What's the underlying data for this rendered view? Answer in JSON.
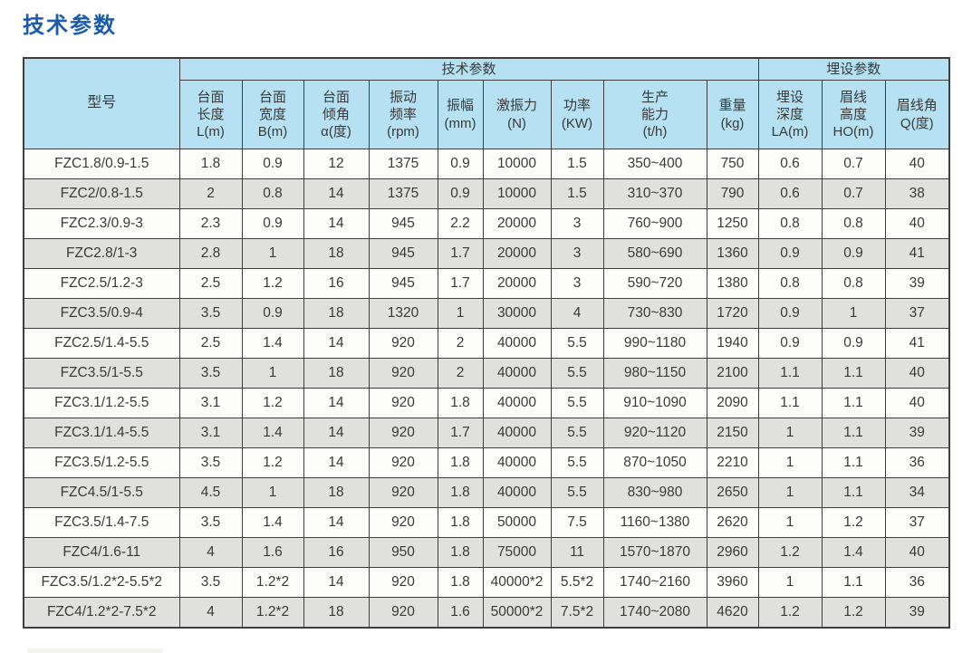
{
  "page_title": "技术参数",
  "colors": {
    "title_blue": "#1d5ca9",
    "header_blue": "#b5e1f2",
    "row_white": "#fdfdfb",
    "row_alt_gray": "#e0e0de",
    "border": "#3e3e3e",
    "text": "#3a3a3a"
  },
  "table": {
    "headers": {
      "model": "型号",
      "group_tech": "技术参数",
      "group_install": "埋设参数",
      "columns": [
        "台面\n长度\nL(m)",
        "台面\n宽度\nB(m)",
        "台面\n倾角\nα(度)",
        "振动\n频率\n(rpm)",
        "振幅\n(mm)",
        "激振力\n(N)",
        "功率\n(KW)",
        "生产\n能力\n(t/h)",
        "重量\n(kg)",
        "埋设\n深度\nLA(m)",
        "眉线\n高度\nHO(m)",
        "眉线角\nQ(度)"
      ]
    },
    "rows": [
      [
        "FZC1.8/0.9-1.5",
        "1.8",
        "0.9",
        "12",
        "1375",
        "0.9",
        "10000",
        "1.5",
        "350~400",
        "750",
        "0.6",
        "0.7",
        "40"
      ],
      [
        "FZC2/0.8-1.5",
        "2",
        "0.8",
        "14",
        "1375",
        "0.9",
        "10000",
        "1.5",
        "310~370",
        "790",
        "0.6",
        "0.7",
        "38"
      ],
      [
        "FZC2.3/0.9-3",
        "2.3",
        "0.9",
        "14",
        "945",
        "2.2",
        "20000",
        "3",
        "760~900",
        "1250",
        "0.8",
        "0.8",
        "40"
      ],
      [
        "FZC2.8/1-3",
        "2.8",
        "1",
        "18",
        "945",
        "1.7",
        "20000",
        "3",
        "580~690",
        "1360",
        "0.9",
        "0.9",
        "41"
      ],
      [
        "FZC2.5/1.2-3",
        "2.5",
        "1.2",
        "16",
        "945",
        "1.7",
        "20000",
        "3",
        "590~720",
        "1380",
        "0.8",
        "0.8",
        "39"
      ],
      [
        "FZC3.5/0.9-4",
        "3.5",
        "0.9",
        "18",
        "1320",
        "1",
        "30000",
        "4",
        "730~830",
        "1720",
        "0.9",
        "1",
        "37"
      ],
      [
        "FZC2.5/1.4-5.5",
        "2.5",
        "1.4",
        "14",
        "920",
        "2",
        "40000",
        "5.5",
        "990~1180",
        "1940",
        "0.9",
        "0.9",
        "41"
      ],
      [
        "FZC3.5/1-5.5",
        "3.5",
        "1",
        "18",
        "920",
        "2",
        "40000",
        "5.5",
        "980~1150",
        "2100",
        "1.1",
        "1.1",
        "40"
      ],
      [
        "FZC3.1/1.2-5.5",
        "3.1",
        "1.2",
        "14",
        "920",
        "1.8",
        "40000",
        "5.5",
        "910~1090",
        "2090",
        "1.1",
        "1.1",
        "40"
      ],
      [
        "FZC3.1/1.4-5.5",
        "3.1",
        "1.4",
        "14",
        "920",
        "1.7",
        "40000",
        "5.5",
        "920~1120",
        "2150",
        "1",
        "1.1",
        "39"
      ],
      [
        "FZC3.5/1.2-5.5",
        "3.5",
        "1.2",
        "14",
        "920",
        "1.8",
        "40000",
        "5.5",
        "870~1050",
        "2210",
        "1",
        "1.1",
        "36"
      ],
      [
        "FZC4.5/1-5.5",
        "4.5",
        "1",
        "18",
        "920",
        "1.8",
        "40000",
        "5.5",
        "830~980",
        "2650",
        "1",
        "1.1",
        "34"
      ],
      [
        "FZC3.5/1.4-7.5",
        "3.5",
        "1.4",
        "14",
        "920",
        "1.8",
        "50000",
        "7.5",
        "1160~1380",
        "2620",
        "1",
        "1.2",
        "37"
      ],
      [
        "FZC4/1.6-11",
        "4",
        "1.6",
        "16",
        "950",
        "1.8",
        "75000",
        "11",
        "1570~1870",
        "2960",
        "1.2",
        "1.4",
        "40"
      ],
      [
        "FZC3.5/1.2*2-5.5*2",
        "3.5",
        "1.2*2",
        "14",
        "920",
        "1.8",
        "40000*2",
        "5.5*2",
        "1740~2160",
        "3960",
        "1",
        "1.1",
        "36"
      ],
      [
        "FZC4/1.2*2-7.5*2",
        "4",
        "1.2*2",
        "18",
        "920",
        "1.6",
        "50000*2",
        "7.5*2",
        "1740~2080",
        "4620",
        "1.2",
        "1.2",
        "39"
      ]
    ]
  }
}
